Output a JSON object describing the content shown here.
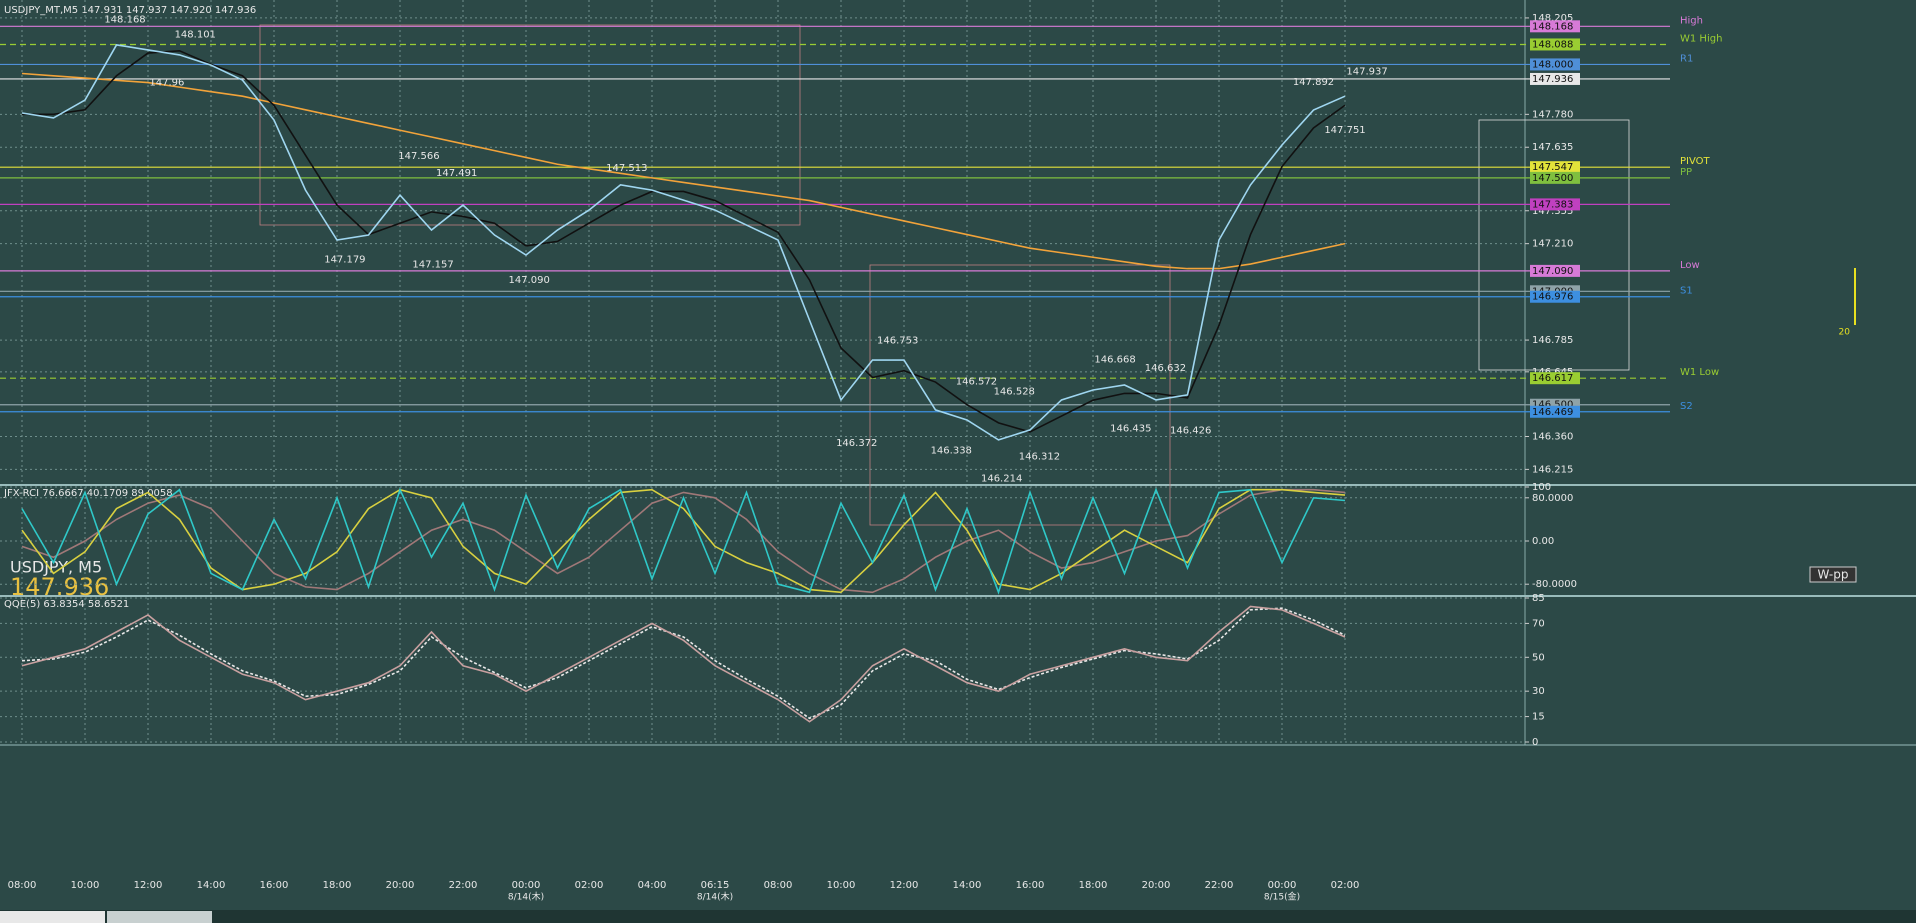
{
  "chart_data": [
    {
      "type": "line",
      "title": "USDJPY_MT,M5  147.931 147.937 147.920 147.936",
      "symbol": "USDJPY, M5",
      "last_price": 147.936,
      "button": "W-pp",
      "spread": 20,
      "categories": [
        "08:00",
        null,
        "10:00",
        null,
        "12:00",
        null,
        "14:00",
        null,
        "16:00",
        null,
        "18:00",
        null,
        "20:00",
        null,
        "22:00",
        null,
        "00:00",
        null,
        "02:00",
        null,
        "04:00",
        null,
        "06:15",
        null,
        "08:00",
        null,
        "10:00",
        null,
        "12:00",
        null,
        "14:00",
        null,
        "16:00",
        null,
        "18:00",
        null,
        "20:00",
        null,
        "22:00",
        null,
        "00:00",
        null,
        "02:00"
      ],
      "date_categories": [
        null,
        null,
        null,
        null,
        null,
        null,
        null,
        null,
        null,
        null,
        null,
        null,
        null,
        null,
        null,
        null,
        "8/14(木)",
        null,
        null,
        null,
        null,
        null,
        "8/14(木)",
        null,
        null,
        null,
        null,
        null,
        null,
        null,
        null,
        null,
        null,
        null,
        null,
        null,
        null,
        null,
        null,
        null,
        "8/15(金)",
        null,
        null
      ],
      "ylim": [
        146.155,
        148.284
      ],
      "yticks": [
        148.205,
        {
          "value": 147.78,
          "label": "147.780"
        },
        147.635,
        147.355,
        {
          "value": 147.21,
          "label": "147.210"
        },
        146.785,
        146.645,
        {
          "value": 146.36,
          "label": "146.360"
        },
        146.215
      ],
      "grid": true,
      "series": [
        {
          "color": "#f2a33a",
          "values": [
            147.96,
            147.95,
            147.94,
            147.93,
            147.92,
            147.9,
            147.88,
            147.86,
            147.83,
            147.8,
            147.77,
            147.74,
            147.71,
            147.68,
            147.65,
            147.62,
            147.59,
            147.56,
            147.54,
            147.52,
            147.5,
            147.48,
            147.46,
            147.44,
            147.42,
            147.4,
            147.37,
            147.34,
            147.31,
            147.28,
            147.25,
            147.22,
            147.19,
            147.17,
            147.15,
            147.13,
            147.11,
            147.1,
            147.1,
            147.12,
            147.15,
            147.18,
            147.21
          ]
        },
        {
          "color": "#111111",
          "values": [
            147.78,
            147.78,
            147.8,
            147.95,
            148.05,
            148.06,
            148.0,
            147.95,
            147.82,
            147.6,
            147.38,
            147.25,
            147.3,
            147.35,
            147.33,
            147.3,
            147.2,
            147.22,
            147.3,
            147.38,
            147.44,
            147.44,
            147.4,
            147.33,
            147.26,
            147.05,
            146.75,
            146.62,
            146.65,
            146.6,
            146.5,
            146.42,
            146.38,
            146.45,
            146.52,
            146.55,
            146.55,
            146.53,
            146.85,
            147.25,
            147.55,
            147.72,
            147.82
          ]
        },
        {
          "color": "#9fd6f0",
          "values": [
            147.786,
            147.764,
            147.843,
            148.086,
            148.064,
            148.042,
            147.997,
            147.931,
            147.755,
            147.446,
            147.226,
            147.248,
            147.424,
            147.27,
            147.38,
            147.248,
            147.16,
            147.27,
            147.358,
            147.469,
            147.446,
            147.402,
            147.358,
            147.292,
            147.226,
            146.873,
            146.521,
            146.697,
            146.697,
            146.477,
            146.433,
            146.345,
            146.389,
            146.521,
            146.565,
            146.587,
            146.521,
            146.543,
            147.226,
            147.469,
            147.645,
            147.799,
            147.86
          ]
        }
      ],
      "levels": [
        {
          "name": "High",
          "value": 148.168,
          "color": "#d77ad7"
        },
        {
          "name": "W1 High",
          "value": 148.088,
          "color": "#9acd32",
          "dashed": true
        },
        {
          "name": "R1",
          "value": 148,
          "label": "148.000",
          "color": "#4f8fd8"
        },
        {
          "value": 147.936,
          "color": "#e8e8e8"
        },
        {
          "name": "PIVOT",
          "value": 147.547,
          "color": "#e3e33a"
        },
        {
          "name": "PP",
          "value": 147.5,
          "label": "147.500",
          "color": "#7fbf3f"
        },
        {
          "value": 147.383,
          "color": "#c040c0"
        },
        {
          "name": "Low",
          "value": 147.09,
          "label": "147.090",
          "color": "#d77ad7"
        },
        {
          "value": 147,
          "label": "147.000",
          "color": "#8fa3a8"
        },
        {
          "name": "S1",
          "value": 146.976,
          "color": "#3d8fe0"
        },
        {
          "name": "W1 Low",
          "value": 146.617,
          "color": "#9acd32",
          "dashed": true
        },
        {
          "value": 146.5,
          "label": "146.500",
          "color": "#8fa3a8"
        },
        {
          "name": "S2",
          "value": 146.469,
          "color": "#3d8fe0"
        }
      ],
      "annotations": [
        {
          "x": 3.27,
          "value": 148.168
        },
        {
          "x": 5.5,
          "value": 148.101
        },
        {
          "x": 4.6,
          "value": 147.96,
          "below": true
        },
        {
          "x": 12.6,
          "value": 147.566
        },
        {
          "x": 13.8,
          "value": 147.491
        },
        {
          "x": 10.25,
          "value": 147.179,
          "below": true
        },
        {
          "x": 13.05,
          "value": 147.157,
          "below": true
        },
        {
          "x": 16.1,
          "value": 147.09,
          "label": "147.090",
          "below": true
        },
        {
          "x": 19.2,
          "value": 147.513
        },
        {
          "x": 27.8,
          "value": 146.753
        },
        {
          "x": 26.5,
          "value": 146.372,
          "below": true
        },
        {
          "x": 29.5,
          "value": 146.338,
          "below": true
        },
        {
          "x": 30.3,
          "value": 146.572
        },
        {
          "x": 31.5,
          "value": 146.528
        },
        {
          "x": 31.1,
          "value": 146.214,
          "below": true
        },
        {
          "x": 32.3,
          "value": 146.312,
          "below": true
        },
        {
          "x": 34.7,
          "value": 146.668
        },
        {
          "x": 36.3,
          "value": 146.632
        },
        {
          "x": 35.2,
          "value": 146.435,
          "below": true
        },
        {
          "x": 37.1,
          "value": 146.426,
          "below": true
        },
        {
          "x": 41,
          "value": 147.892
        },
        {
          "x": 42.7,
          "value": 147.937
        },
        {
          "x": 42,
          "value": 147.751,
          "below": true
        }
      ]
    },
    {
      "type": "line",
      "title": "JFX-RCI 76.6667 40.1709 89.0058",
      "ylim": [
        -100,
        100
      ],
      "yticks": [
        100,
        {
          "value": 80,
          "label": "80.0000"
        },
        {
          "value": 0,
          "label": "0.00"
        },
        {
          "value": -80,
          "label": "-80.0000"
        }
      ],
      "grid": true,
      "series": [
        {
          "color": "#a07878",
          "values": [
            -10,
            -30,
            0,
            40,
            70,
            85,
            60,
            0,
            -60,
            -85,
            -90,
            -60,
            -20,
            20,
            40,
            20,
            -20,
            -60,
            -30,
            20,
            70,
            90,
            80,
            40,
            -20,
            -60,
            -90,
            -95,
            -70,
            -30,
            0,
            20,
            -20,
            -50,
            -40,
            -20,
            0,
            10,
            50,
            85,
            95,
            95,
            90
          ]
        },
        {
          "color": "#d8d040",
          "values": [
            20,
            -60,
            -20,
            60,
            90,
            40,
            -50,
            -90,
            -80,
            -60,
            -20,
            60,
            95,
            80,
            -10,
            -60,
            -80,
            -20,
            40,
            90,
            95,
            60,
            -10,
            -40,
            -60,
            -90,
            -95,
            -40,
            30,
            90,
            20,
            -80,
            -90,
            -60,
            -20,
            20,
            -10,
            -40,
            60,
            95,
            95,
            90,
            85
          ]
        },
        {
          "color": "#2fc8c8",
          "values": [
            60,
            -40,
            90,
            -80,
            50,
            95,
            -60,
            -90,
            40,
            -70,
            80,
            -85,
            95,
            -30,
            70,
            -90,
            85,
            -50,
            60,
            95,
            -70,
            80,
            -60,
            90,
            -80,
            -95,
            70,
            -40,
            85,
            -90,
            60,
            -95,
            90,
            -70,
            80,
            -60,
            95,
            -50,
            90,
            95,
            -40,
            80,
            75
          ]
        }
      ]
    },
    {
      "type": "line",
      "title": "QQE(5) 63.8354 58.6521",
      "ylim": [
        0,
        85
      ],
      "yticks": [
        85,
        70,
        50,
        30,
        15,
        0
      ],
      "grid": true,
      "series": [
        {
          "color": "#e8e8e8",
          "dashed": true,
          "values": [
            48,
            49,
            53,
            62,
            72,
            63,
            52,
            42,
            36,
            27,
            28,
            34,
            42,
            62,
            50,
            41,
            32,
            38,
            48,
            58,
            68,
            62,
            48,
            37,
            27,
            14,
            22,
            42,
            52,
            48,
            37,
            31,
            38,
            44,
            49,
            54,
            52,
            49,
            60,
            78,
            79,
            72,
            63
          ]
        },
        {
          "color": "#c8a0a0",
          "values": [
            45,
            50,
            55,
            65,
            75,
            60,
            50,
            40,
            35,
            25,
            30,
            35,
            45,
            65,
            45,
            40,
            30,
            40,
            50,
            60,
            70,
            60,
            45,
            35,
            25,
            12,
            25,
            45,
            55,
            45,
            35,
            30,
            40,
            45,
            50,
            55,
            50,
            48,
            65,
            80,
            78,
            70,
            62
          ]
        }
      ]
    }
  ]
}
